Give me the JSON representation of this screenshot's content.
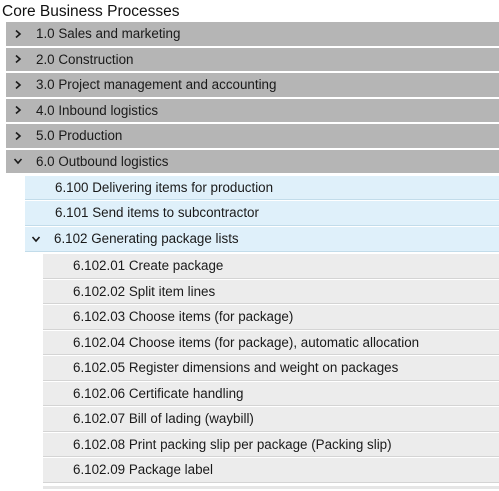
{
  "title": "Core Business Processes",
  "icons": {
    "collapsed": "chevron-right-icon",
    "expanded": "chevron-down-icon"
  },
  "colors": {
    "level0_bg": "#b5b5b5",
    "level1_bg": "#dff0fa",
    "level2_bg": "#ececec"
  },
  "tree": {
    "level0": [
      {
        "label": "1.0 Sales and marketing",
        "expanded": false
      },
      {
        "label": "2.0 Construction",
        "expanded": false
      },
      {
        "label": "3.0 Project management and accounting",
        "expanded": false
      },
      {
        "label": "4.0 Inbound logistics",
        "expanded": false
      },
      {
        "label": "5.0 Production",
        "expanded": false
      },
      {
        "label": "6.0 Outbound logistics",
        "expanded": true
      }
    ],
    "level1": [
      {
        "label": "6.100 Delivering items for production"
      },
      {
        "label": "6.101 Send items to subcontractor"
      },
      {
        "label": "6.102 Generating package lists",
        "expanded": true
      }
    ],
    "level2": [
      {
        "label": "6.102.01 Create package"
      },
      {
        "label": "6.102.02 Split item lines"
      },
      {
        "label": "6.102.03 Choose items (for package)"
      },
      {
        "label": "6.102.04 Choose items (for package), automatic allocation"
      },
      {
        "label": "6.102.05 Register dimensions and weight on packages"
      },
      {
        "label": "6.102.06 Certificate handling"
      },
      {
        "label": "6.102.07 Bill of lading (waybill)"
      },
      {
        "label": "6.102.08 Print packing slip per package (Packing slip)"
      },
      {
        "label": "6.102.09 Package label"
      }
    ]
  }
}
